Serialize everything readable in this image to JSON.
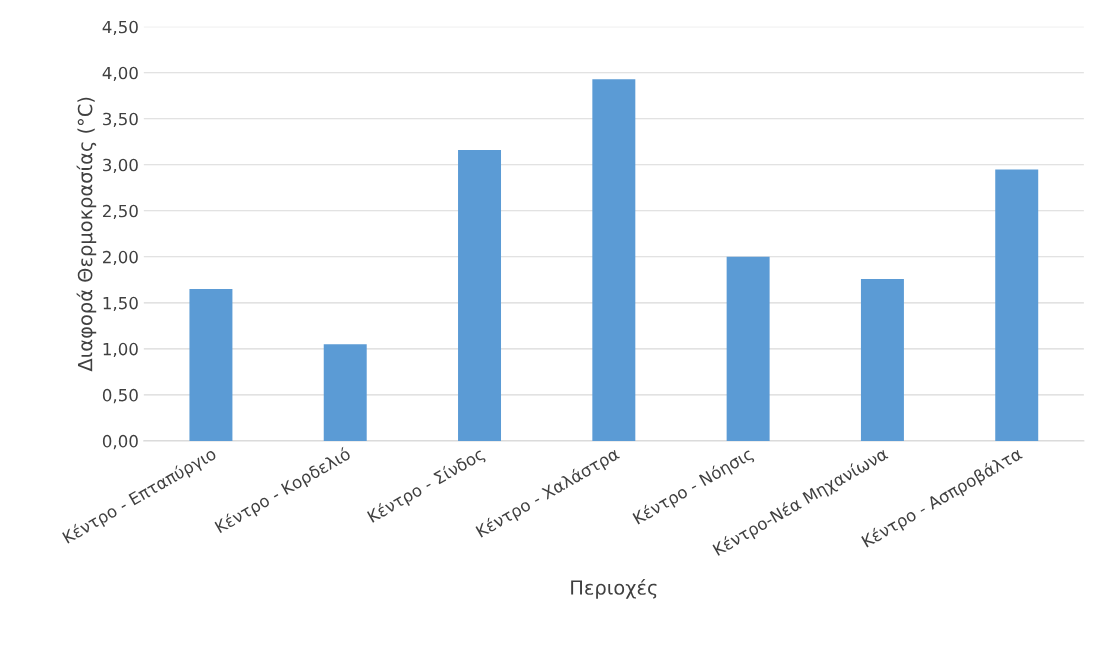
{
  "chart_data": {
    "type": "bar",
    "xlabel": "Περιοχές",
    "ylabel": "Διαφορά Θερμοκρασίας (°C)",
    "categories": [
      "Κέντρο - Επταπύργιο",
      "Κέντρο - Κορδελιό",
      "Κέντρο - Σίνδος",
      "Κέντρο - Χαλάστρα",
      "Κέντρο - Νόησις",
      "Κέντρο-Νέα Μηχανίωνα",
      "Κέντρο - Ασπροβάλτα"
    ],
    "values": [
      1.65,
      1.05,
      3.16,
      3.93,
      2.0,
      1.76,
      2.95
    ],
    "color": "#5b9bd5",
    "ylim": [
      0,
      4.5
    ],
    "yticks": [
      {
        "value": 0,
        "label": "0,00"
      },
      {
        "value": 0.5,
        "label": "0,50"
      },
      {
        "value": 1,
        "label": "1,00"
      },
      {
        "value": 1.5,
        "label": "1,50"
      },
      {
        "value": 2,
        "label": "2,00"
      },
      {
        "value": 2.5,
        "label": "2,50"
      },
      {
        "value": 3,
        "label": "3,00"
      },
      {
        "value": 3.5,
        "label": "3,50"
      },
      {
        "value": 4,
        "label": "4,00"
      },
      {
        "value": 4.5,
        "label": "4,50"
      }
    ],
    "grid": "y"
  }
}
